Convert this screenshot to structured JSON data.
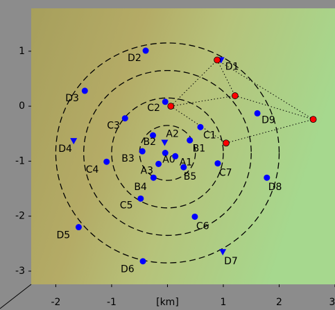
{
  "chart_data": {
    "type": "scatter",
    "xlim": [
      -2.44,
      3.0
    ],
    "ylim": [
      -3.24,
      1.78
    ],
    "xticks": [
      -2,
      -1,
      {
        "value": 0,
        "label": "[km]"
      },
      1,
      2,
      3
    ],
    "yticks": [
      1,
      0,
      -1,
      -2,
      -3
    ],
    "rings": {
      "center": [
        0,
        -0.85
      ],
      "radii": [
        0.5,
        1,
        1.5,
        2
      ]
    },
    "series": [
      {
        "marker": "circle",
        "color": "#0000ff",
        "labels": [
          "D2",
          "D3",
          "C3",
          "C2",
          "C1",
          "D9",
          "B2",
          "B1",
          "B3",
          "A0",
          "A1",
          "A3",
          "B5",
          "B4",
          "C4",
          "C7",
          "D8",
          "C5",
          "C6",
          "D5",
          "D6"
        ],
        "x": [
          -0.39,
          -1.48,
          -0.76,
          -0.04,
          0.59,
          1.61,
          -0.26,
          0.4,
          -0.45,
          -0.04,
          0.14,
          -0.16,
          0.29,
          -0.25,
          -1.09,
          0.9,
          1.78,
          -0.48,
          0.49,
          -1.59,
          -0.44
        ],
        "y": [
          1.01,
          0.28,
          -0.22,
          0.08,
          -0.38,
          -0.13,
          -0.53,
          -0.62,
          -0.82,
          -0.85,
          -0.91,
          -1.05,
          -1.11,
          -1.3,
          -1.01,
          -1.04,
          -1.3,
          -1.68,
          -2.01,
          -2.2,
          -2.82
        ]
      },
      {
        "marker": "triangle",
        "color": "#0000ff",
        "labels": [
          "D1",
          "D4",
          "D7",
          "A2"
        ],
        "x": [
          0.96,
          -1.68,
          0.99,
          -0.05
        ],
        "y": [
          0.84,
          -0.63,
          -2.65,
          -0.66
        ]
      },
      {
        "marker": "circle",
        "color": "#ff0000",
        "x": [
          0.06,
          0.89,
          1.21,
          1.05,
          2.61
        ],
        "y": [
          0.0,
          0.84,
          0.19,
          -0.67,
          -0.24
        ]
      }
    ]
  }
}
